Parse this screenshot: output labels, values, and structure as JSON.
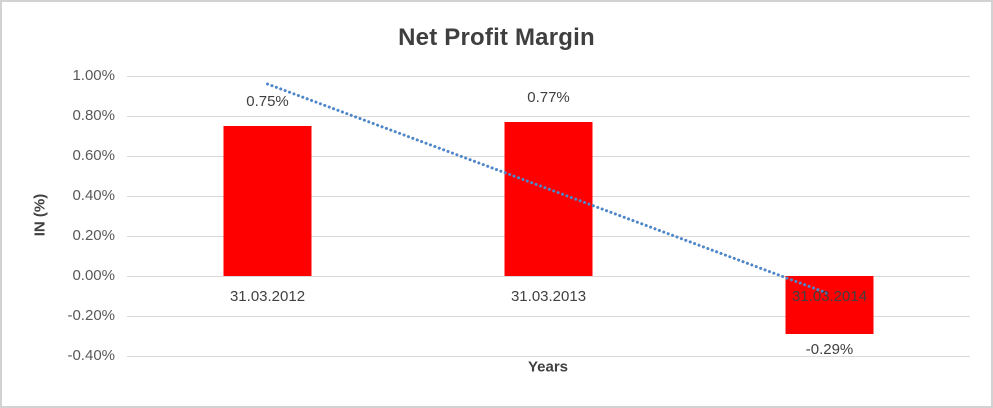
{
  "chart_data": {
    "type": "bar",
    "title": "Net Profit Margin",
    "xlabel": "Years",
    "ylabel": "IN (%)",
    "categories": [
      "31.03.2012",
      "31.03.2013",
      "31.03.2014"
    ],
    "values": [
      0.75,
      0.77,
      -0.29
    ],
    "data_labels": [
      "0.75%",
      "0.77%",
      "-0.29%"
    ],
    "y_ticks": [
      "1.00%",
      "0.80%",
      "0.60%",
      "0.40%",
      "0.20%",
      "0.00%",
      "-0.20%",
      "-0.40%"
    ],
    "ylim": [
      -0.4,
      1.0
    ],
    "y_step": 0.2,
    "grid": true,
    "legend": false,
    "trendline": {
      "type": "linear",
      "style": "dotted",
      "start_value": 0.96,
      "end_value": -0.09
    }
  },
  "colors": {
    "bar": "#FF0000",
    "trendline": "#4E86C8",
    "gridline": "#D9D9D9",
    "title_text": "#3F3F3F",
    "axis_text": "#595959",
    "label_text": "#404040",
    "frame_border": "#D2D2D2"
  }
}
